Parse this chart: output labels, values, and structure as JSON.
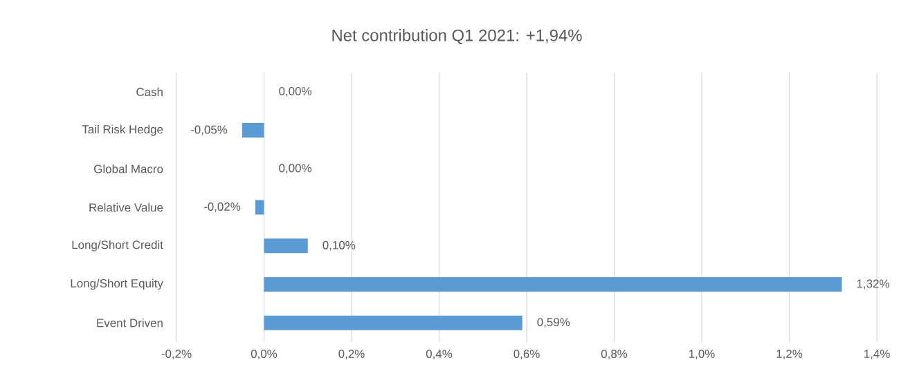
{
  "chart_data": {
    "type": "bar",
    "orientation": "horizontal",
    "title": "Net contribution Q1 2021: +1,94%",
    "categories": [
      "Cash",
      "Tail Risk Hedge",
      "Global Macro",
      "Relative Value",
      "Long/Short Credit",
      "Long/Short Equity",
      "Event Driven"
    ],
    "values": [
      0,
      -0.05,
      0,
      -0.02,
      0.1,
      1.32,
      0.59
    ],
    "value_labels": [
      "0,00%",
      "-0,05%",
      "0,00%",
      "-0,02%",
      "0,10%",
      "1,32%",
      "0,59%"
    ],
    "color": "#5b9bd5",
    "xlim": [
      -0.2,
      1.4
    ],
    "xticks": [
      {
        "value": -0.2,
        "label": "-0,2%"
      },
      {
        "value": 0,
        "label": "0,0%"
      },
      {
        "value": 0.2,
        "label": "0,2%"
      },
      {
        "value": 0.4,
        "label": "0,4%"
      },
      {
        "value": 0.6,
        "label": "0,6%"
      },
      {
        "value": 0.8,
        "label": "0,8%"
      },
      {
        "value": 1.0,
        "label": "1,0%"
      },
      {
        "value": 1.2,
        "label": "1,2%"
      },
      {
        "value": 1.4,
        "label": "1,4%"
      }
    ],
    "grid": "x"
  }
}
